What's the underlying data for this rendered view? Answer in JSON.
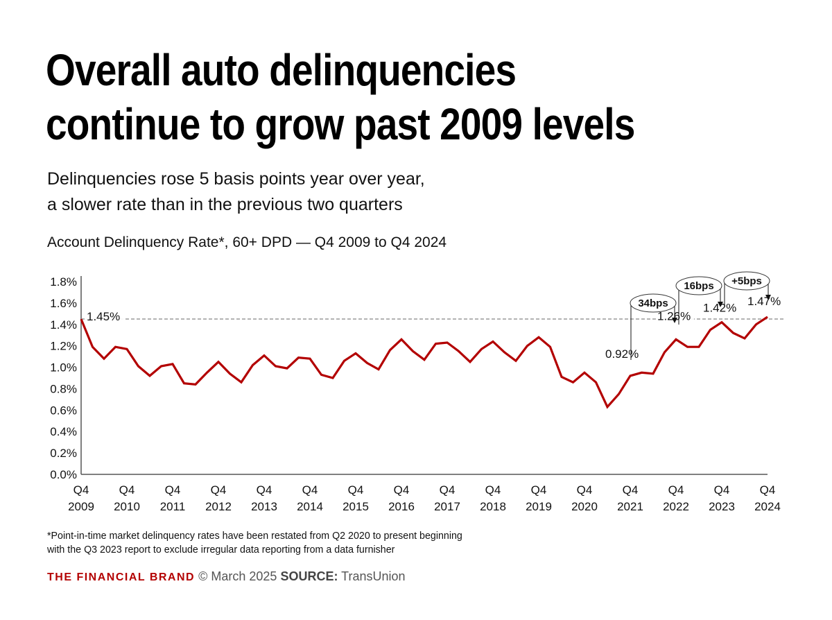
{
  "header": {
    "title_line1": "Overall auto delinquencies",
    "title_line2": "continue to grow past 2009 levels",
    "subtitle_line1": "Delinquencies rose 5 basis points year over year,",
    "subtitle_line2": "a slower rate than in the previous two quarters"
  },
  "chart_data": {
    "type": "line",
    "title": "Account Delinquency Rate*, 60+ DPD — Q4 2009 to Q4 2024",
    "xlabel": "",
    "ylabel": "",
    "ylim": [
      0,
      1.8
    ],
    "y_ticks": [
      "0.0%",
      "0.2%",
      "0.4%",
      "0.6%",
      "0.8%",
      "1.0%",
      "1.2%",
      "1.4%",
      "1.6%",
      "1.8%"
    ],
    "x_ticks": [
      {
        "q": "Q4",
        "year": "2009"
      },
      {
        "q": "Q4",
        "year": "2010"
      },
      {
        "q": "Q4",
        "year": "2011"
      },
      {
        "q": "Q4",
        "year": "2012"
      },
      {
        "q": "Q4",
        "year": "2013"
      },
      {
        "q": "Q4",
        "year": "2014"
      },
      {
        "q": "Q4",
        "year": "2015"
      },
      {
        "q": "Q4",
        "year": "2016"
      },
      {
        "q": "Q4",
        "year": "2017"
      },
      {
        "q": "Q4",
        "year": "2018"
      },
      {
        "q": "Q4",
        "year": "2019"
      },
      {
        "q": "Q4",
        "year": "2020"
      },
      {
        "q": "Q4",
        "year": "2021"
      },
      {
        "q": "Q4",
        "year": "2022"
      },
      {
        "q": "Q4",
        "year": "2023"
      },
      {
        "q": "Q4",
        "year": "2024"
      }
    ],
    "x_start": "Q4 2009",
    "x_end": "Q4 2024",
    "frequency": "quarterly",
    "grid": false,
    "line_color": "#b30000",
    "values": [
      1.45,
      1.19,
      1.08,
      1.19,
      1.17,
      1.01,
      0.92,
      1.01,
      1.03,
      0.85,
      0.84,
      0.95,
      1.05,
      0.94,
      0.86,
      1.02,
      1.11,
      1.01,
      0.99,
      1.09,
      1.08,
      0.93,
      0.9,
      1.06,
      1.13,
      1.04,
      0.98,
      1.16,
      1.26,
      1.15,
      1.07,
      1.22,
      1.23,
      1.15,
      1.05,
      1.17,
      1.24,
      1.14,
      1.06,
      1.2,
      1.28,
      1.19,
      0.91,
      0.86,
      0.95,
      0.86,
      0.63,
      0.75,
      0.92,
      0.95,
      0.94,
      1.14,
      1.26,
      1.19,
      1.19,
      1.35,
      1.42,
      1.32,
      1.27,
      1.4,
      1.47
    ],
    "reference_line": {
      "value": 1.45,
      "style": "dashed",
      "color": "#999999"
    },
    "data_labels": [
      {
        "period": "Q4 2009",
        "value": 1.45,
        "text": "1.45%"
      },
      {
        "period": "Q4 2021",
        "value": 0.92,
        "text": "0.92%"
      },
      {
        "period": "Q4 2022",
        "value": 1.26,
        "text": "1.26%"
      },
      {
        "period": "Q4 2023",
        "value": 1.42,
        "text": "1.42%"
      },
      {
        "period": "Q4 2024",
        "value": 1.47,
        "text": "1.47%"
      }
    ],
    "annotations": [
      {
        "from": "Q4 2021",
        "to": "Q4 2022",
        "text": "34bps"
      },
      {
        "from": "Q4 2022",
        "to": "Q4 2023",
        "text": "16bps"
      },
      {
        "from": "Q4 2023",
        "to": "Q4 2024",
        "text": "+5bps"
      }
    ]
  },
  "footnote": {
    "line1": "*Point-in-time market delinquency rates have been restated from Q2 2020 to present beginning",
    "line2": "with the Q3 2023 report to exclude irregular data reporting from a data furnisher"
  },
  "footer": {
    "brand": "THE FINANCIAL BRAND",
    "date": "© March 2025",
    "source_label": "SOURCE:",
    "source": "TransUnion",
    "brand_color": "#b30000"
  }
}
